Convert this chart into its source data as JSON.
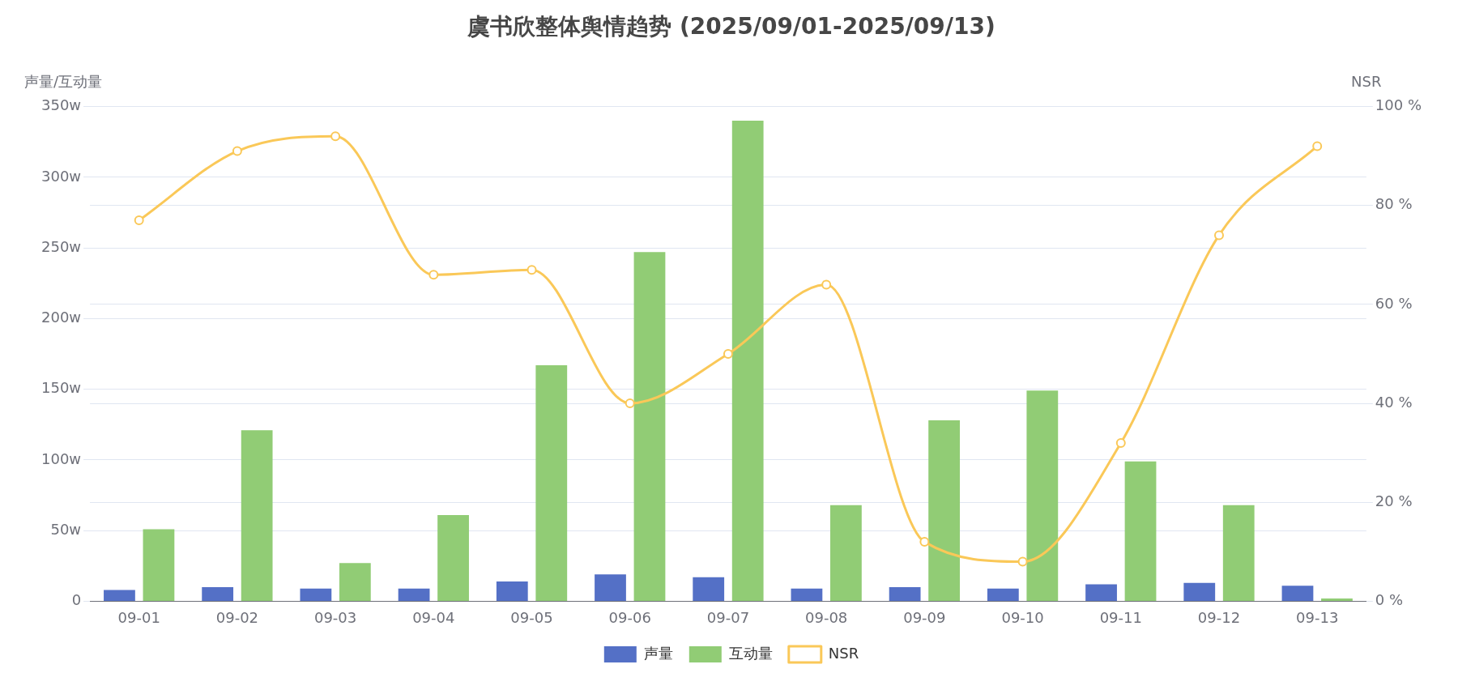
{
  "chart_data": {
    "type": "bar",
    "title": "虞书欣整体舆情趋势 (2025/09/01-2025/09/13)",
    "ylabel": "声量/互动量",
    "y2label": "NSR",
    "categories": [
      "09-01",
      "09-02",
      "09-03",
      "09-04",
      "09-05",
      "09-06",
      "09-07",
      "09-08",
      "09-09",
      "09-10",
      "09-11",
      "09-12",
      "09-13"
    ],
    "series": [
      {
        "name": "声量",
        "color": "#5470c6",
        "values": [
          8,
          10,
          9,
          9,
          14,
          19,
          17,
          9,
          10,
          9,
          12,
          13,
          11
        ]
      },
      {
        "name": "互动量",
        "color": "#91cc75",
        "values": [
          51,
          121,
          27,
          61,
          167,
          247,
          340,
          68,
          128,
          149,
          99,
          68,
          2
        ]
      },
      {
        "name": "NSR",
        "type": "line",
        "axis": "y2",
        "color": "#fac858",
        "marker": "circle",
        "values": [
          77,
          91,
          94,
          66,
          67,
          40,
          50,
          64,
          12,
          8,
          32,
          74,
          92
        ]
      }
    ],
    "ylim": [
      0,
      350
    ],
    "yticks": [
      {
        "value": 0,
        "label": "0"
      },
      {
        "value": 50,
        "label": "50w"
      },
      {
        "value": 100,
        "label": "100w"
      },
      {
        "value": 150,
        "label": "150w"
      },
      {
        "value": 200,
        "label": "200w"
      },
      {
        "value": 250,
        "label": "250w"
      },
      {
        "value": 300,
        "label": "300w"
      },
      {
        "value": 350,
        "label": "350w"
      }
    ],
    "y2lim": [
      0,
      100
    ],
    "y2ticks": [
      {
        "value": 0,
        "label": "0 %"
      },
      {
        "value": 20,
        "label": "20 %"
      },
      {
        "value": 40,
        "label": "40 %"
      },
      {
        "value": 60,
        "label": "60 %"
      },
      {
        "value": 80,
        "label": "80 %"
      },
      {
        "value": 100,
        "label": "100 %"
      }
    ],
    "grid": "y",
    "legend": "bottom"
  }
}
